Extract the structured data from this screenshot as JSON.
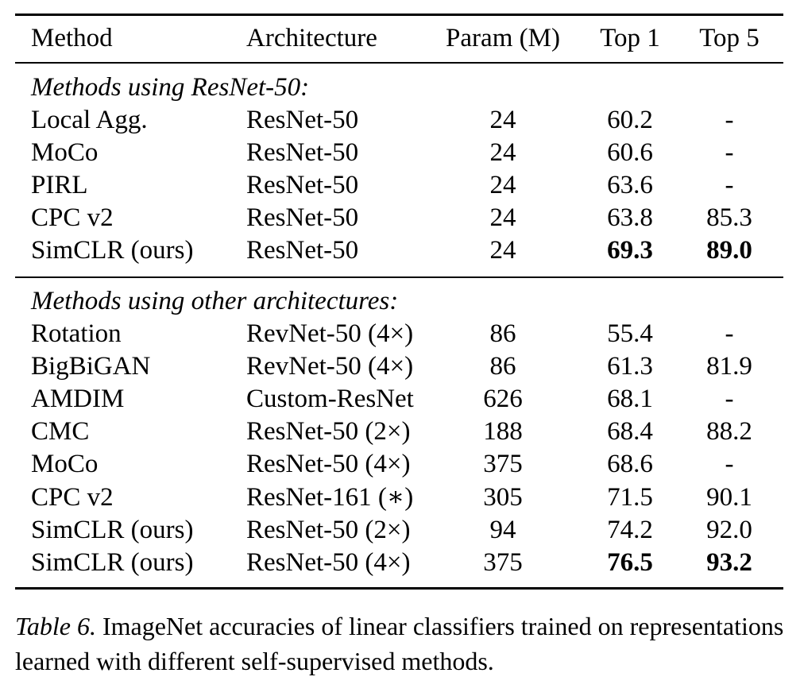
{
  "table": {
    "headers": [
      "Method",
      "Architecture",
      "Param (M)",
      "Top 1",
      "Top 5"
    ],
    "sections": [
      {
        "title": "Methods using ResNet-50:",
        "rows": [
          {
            "method": "Local Agg.",
            "arch": "ResNet-50",
            "param": "24",
            "top1": "60.2",
            "top5": "-",
            "top1_bold": false,
            "top5_bold": false
          },
          {
            "method": "MoCo",
            "arch": "ResNet-50",
            "param": "24",
            "top1": "60.6",
            "top5": "-",
            "top1_bold": false,
            "top5_bold": false
          },
          {
            "method": "PIRL",
            "arch": "ResNet-50",
            "param": "24",
            "top1": "63.6",
            "top5": "-",
            "top1_bold": false,
            "top5_bold": false
          },
          {
            "method": "CPC v2",
            "arch": "ResNet-50",
            "param": "24",
            "top1": "63.8",
            "top5": "85.3",
            "top1_bold": false,
            "top5_bold": false
          },
          {
            "method": "SimCLR (ours)",
            "arch": "ResNet-50",
            "param": "24",
            "top1": "69.3",
            "top5": "89.0",
            "top1_bold": true,
            "top5_bold": true
          }
        ]
      },
      {
        "title": "Methods using other architectures:",
        "rows": [
          {
            "method": "Rotation",
            "arch": "RevNet-50 (4×)",
            "param": "86",
            "top1": "55.4",
            "top5": "-",
            "top1_bold": false,
            "top5_bold": false
          },
          {
            "method": "BigBiGAN",
            "arch": "RevNet-50 (4×)",
            "param": "86",
            "top1": "61.3",
            "top5": "81.9",
            "top1_bold": false,
            "top5_bold": false
          },
          {
            "method": "AMDIM",
            "arch": "Custom-ResNet",
            "param": "626",
            "top1": "68.1",
            "top5": "-",
            "top1_bold": false,
            "top5_bold": false
          },
          {
            "method": "CMC",
            "arch": "ResNet-50 (2×)",
            "param": "188",
            "top1": "68.4",
            "top5": "88.2",
            "top1_bold": false,
            "top5_bold": false
          },
          {
            "method": "MoCo",
            "arch": "ResNet-50 (4×)",
            "param": "375",
            "top1": "68.6",
            "top5": "-",
            "top1_bold": false,
            "top5_bold": false
          },
          {
            "method": "CPC v2",
            "arch": "ResNet-161 (∗)",
            "param": "305",
            "top1": "71.5",
            "top5": "90.1",
            "top1_bold": false,
            "top5_bold": false
          },
          {
            "method": "SimCLR (ours)",
            "arch": "ResNet-50 (2×)",
            "param": "94",
            "top1": "74.2",
            "top5": "92.0",
            "top1_bold": false,
            "top5_bold": false
          },
          {
            "method": "SimCLR (ours)",
            "arch": "ResNet-50 (4×)",
            "param": "375",
            "top1": "76.5",
            "top5": "93.2",
            "top1_bold": true,
            "top5_bold": true
          }
        ]
      }
    ]
  },
  "caption": {
    "label": "Table 6.",
    "text": " ImageNet accuracies of linear classifiers trained on representations learned with different self-supervised methods."
  }
}
